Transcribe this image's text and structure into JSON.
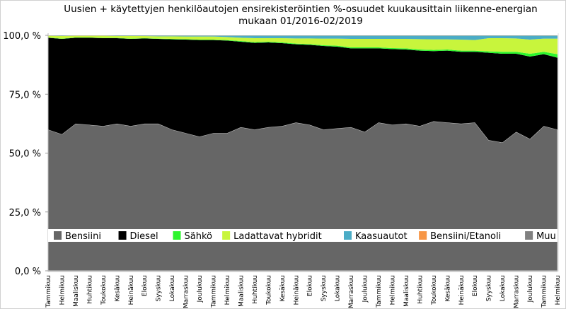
{
  "chart_data": {
    "type": "area",
    "stacked": true,
    "title": "Uusien + käytettyjen henkilöautojen ensirekisteröintien %-osuudet kuukausittain liikenne-energian mukaan 01/2016-02/2019",
    "title_lines": [
      "Uusien + käytettyjen henkilöautojen ensirekisteröintien %-osuudet kuukausittain liikenne-energian",
      "mukaan 01/2016-02/2019"
    ],
    "xlabel": "",
    "ylabel": "",
    "ylim": [
      0,
      100
    ],
    "y_ticks": [
      0,
      25,
      50,
      75,
      100
    ],
    "y_tick_labels": [
      "0,0 %",
      "25,0 %",
      "50,0 %",
      "75,0 %",
      "100,0 %"
    ],
    "legend_position": "bottom-inside",
    "categories": [
      "Tammikuu",
      "Helmikuu",
      "Maaliskuu",
      "Huhtikuu",
      "Toukokuu",
      "Kesäkuu",
      "Heinäkuu",
      "Elokuu",
      "Syyskuu",
      "Lokakuu",
      "Marraskuu",
      "Joulukuu",
      "Tammikuu",
      "Helmikuu",
      "Maaliskuu",
      "Huhtikuu",
      "Toukokuu",
      "Kesäkuu",
      "Heinäkuu",
      "Elokuu",
      "Syyskuu",
      "Lokakuu",
      "Marraskuu",
      "Joulukuu",
      "Tammikuu",
      "Helmikuu",
      "Maaliskuu",
      "Huhtikuu",
      "Toukokuu",
      "Kesäkuu",
      "Heinäkuu",
      "Elokuu",
      "Syyskuu",
      "Lokakuu",
      "Marraskuu",
      "Joulukuu",
      "Tammikuu",
      "Helmikuu"
    ],
    "series": [
      {
        "name": "Bensiini",
        "color": "#666666",
        "values": [
          60,
          58,
          62.5,
          62,
          61.5,
          62.5,
          61.5,
          62.5,
          62.5,
          60,
          58.5,
          57,
          58.5,
          58.5,
          61,
          60,
          61,
          61.5,
          63,
          62,
          60,
          60.5,
          61,
          59,
          63,
          62,
          62.5,
          61.5,
          63.5,
          63,
          62.5,
          63,
          55.5,
          54.5,
          59,
          56,
          61.5,
          60
        ]
      },
      {
        "name": "Diesel",
        "color": "#000000",
        "values": [
          39,
          40.5,
          36.5,
          37,
          37.3,
          36.3,
          37,
          36.2,
          36,
          38.3,
          39.7,
          41,
          39.5,
          39.3,
          36.3,
          36.8,
          36,
          35.2,
          33.2,
          34,
          35.5,
          34.7,
          33.5,
          35.5,
          31.5,
          32.2,
          31.5,
          32,
          29.8,
          30.5,
          30.5,
          30,
          37.1,
          37.7,
          33.2,
          35,
          30.5,
          30.5
        ]
      },
      {
        "name": "Sähkö",
        "color": "#2ef52e",
        "values": [
          0.1,
          0.1,
          0.1,
          0.1,
          0.1,
          0.1,
          0.1,
          0.1,
          0.1,
          0.2,
          0.2,
          0.2,
          0.2,
          0.2,
          0.3,
          0.3,
          0.3,
          0.3,
          0.3,
          0.3,
          0.3,
          0.4,
          0.4,
          0.4,
          0.4,
          0.4,
          0.5,
          0.5,
          0.5,
          0.5,
          0.5,
          0.5,
          0.6,
          0.8,
          0.8,
          1.2,
          1.0,
          1.5
        ]
      },
      {
        "name": "Ladattavat hybridit",
        "color": "#c8f53c",
        "values": [
          0.7,
          1.1,
          0.7,
          0.7,
          0.9,
          0.8,
          1.1,
          0.9,
          1.0,
          1.1,
          1.1,
          1.3,
          1.3,
          1.3,
          1.4,
          1.7,
          1.5,
          1.8,
          2.2,
          2.4,
          2.8,
          3.0,
          3.6,
          3.6,
          3.6,
          3.9,
          4.0,
          4.4,
          4.5,
          4.3,
          4.7,
          4.5,
          5.6,
          5.8,
          5.7,
          6.0,
          5.6,
          6.6
        ]
      },
      {
        "name": "Kaasuautot",
        "color": "#4bacc6",
        "values": [
          0.1,
          0.2,
          0.1,
          0.1,
          0.1,
          0.2,
          0.2,
          0.2,
          0.3,
          0.3,
          0.4,
          0.4,
          0.4,
          0.6,
          0.9,
          1.1,
          1.1,
          1.1,
          1.2,
          1.2,
          1.3,
          1.3,
          1.4,
          1.4,
          1.4,
          1.4,
          1.4,
          1.5,
          1.6,
          1.6,
          1.7,
          1.9,
          1.1,
          1.1,
          1.2,
          1.7,
          1.3,
          1.3
        ]
      },
      {
        "name": "Bensiini/Etanoli",
        "color": "#f79646",
        "values": [
          0.05,
          0.05,
          0.05,
          0.05,
          0.05,
          0.05,
          0.05,
          0.05,
          0.05,
          0.05,
          0.05,
          0.05,
          0.05,
          0.05,
          0.05,
          0.05,
          0.05,
          0.05,
          0.05,
          0.05,
          0.05,
          0.05,
          0.05,
          0.05,
          0.05,
          0.05,
          0.05,
          0.05,
          0.05,
          0.05,
          0.05,
          0.05,
          0.05,
          0.05,
          0.05,
          0.05,
          0.05,
          0.05
        ]
      },
      {
        "name": "Muu",
        "color": "#808080",
        "values": [
          0.05,
          0.05,
          0.05,
          0.05,
          0.05,
          0.05,
          0.05,
          0.05,
          0.05,
          0.05,
          0.05,
          0.05,
          0.05,
          0.05,
          0.05,
          0.05,
          0.05,
          0.05,
          0.05,
          0.05,
          0.05,
          0.05,
          0.05,
          0.05,
          0.05,
          0.05,
          0.05,
          0.05,
          0.05,
          0.05,
          0.05,
          0.05,
          0.05,
          0.05,
          0.05,
          0.05,
          0.05,
          0.05
        ]
      }
    ]
  }
}
